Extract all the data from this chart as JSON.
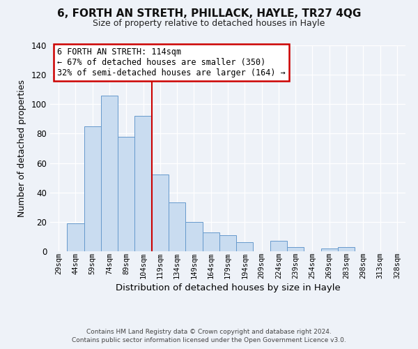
{
  "title1": "6, FORTH AN STRETH, PHILLACK, HAYLE, TR27 4QG",
  "title2": "Size of property relative to detached houses in Hayle",
  "xlabel": "Distribution of detached houses by size in Hayle",
  "ylabel": "Number of detached properties",
  "bin_labels": [
    "29sqm",
    "44sqm",
    "59sqm",
    "74sqm",
    "89sqm",
    "104sqm",
    "119sqm",
    "134sqm",
    "149sqm",
    "164sqm",
    "179sqm",
    "194sqm",
    "209sqm",
    "224sqm",
    "239sqm",
    "254sqm",
    "269sqm",
    "283sqm",
    "298sqm",
    "313sqm",
    "328sqm"
  ],
  "bar_values": [
    0,
    19,
    85,
    106,
    78,
    92,
    52,
    33,
    20,
    13,
    11,
    6,
    0,
    7,
    3,
    0,
    2,
    3,
    0,
    0,
    0
  ],
  "bar_color": "#c9dcf0",
  "bar_edge_color": "#6699cc",
  "vline_x_index": 6,
  "vline_color": "#cc0000",
  "annotation_title": "6 FORTH AN STRETH: 114sqm",
  "annotation_line1": "← 67% of detached houses are smaller (350)",
  "annotation_line2": "32% of semi-detached houses are larger (164) →",
  "annotation_box_color": "#ffffff",
  "annotation_box_edge": "#cc0000",
  "ylim": [
    0,
    140
  ],
  "yticks": [
    0,
    20,
    40,
    60,
    80,
    100,
    120,
    140
  ],
  "footer1": "Contains HM Land Registry data © Crown copyright and database right 2024.",
  "footer2": "Contains public sector information licensed under the Open Government Licence v3.0.",
  "bg_color": "#eef2f8",
  "grid_color": "#ffffff",
  "title1_fontsize": 11,
  "title2_fontsize": 9
}
